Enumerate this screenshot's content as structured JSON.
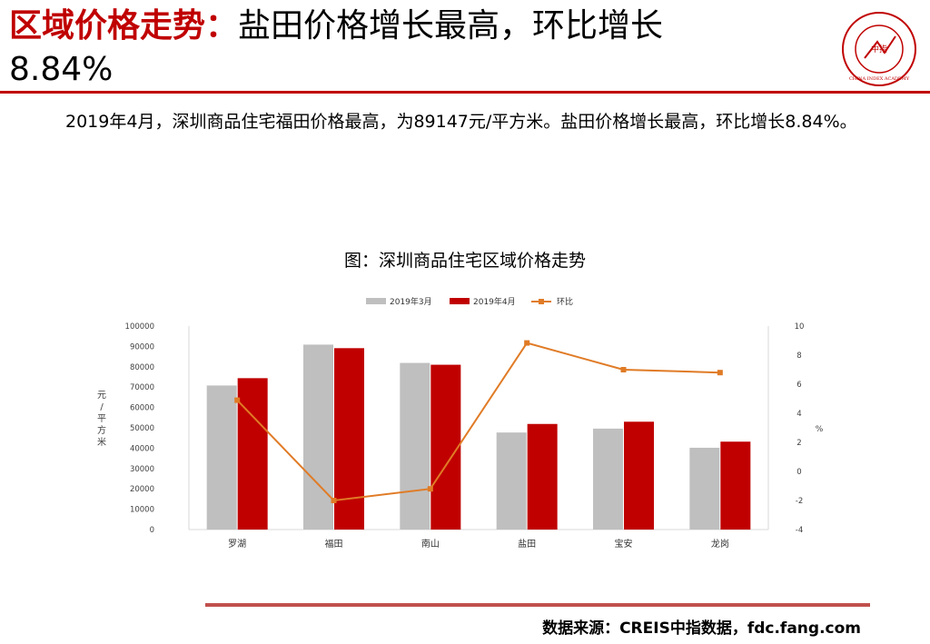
{
  "header": {
    "title_lead": "区域价格走势：",
    "title_rest": "盐田价格增长最高，环比增长",
    "title_line2": "8.84%",
    "logo_text": "CHINA INDEX ACADEMY",
    "logo_center": "中指"
  },
  "paragraph": "2019年4月，深圳商品住宅福田价格最高，为89147元/平方米。盐田价格增长最高，环比增长8.84%。",
  "chart_title": "图：深圳商品住宅区域价格走势",
  "source": "数据来源：CREIS中指数据，fdc.fang.com",
  "colors": {
    "accent": "#c00000",
    "bar_march": "#bfbfbf",
    "bar_april": "#c00000",
    "line": "#e07b26",
    "rule_bottom": "#c0504d"
  },
  "chart_data": {
    "type": "bar",
    "title": "图：深圳商品住宅区域价格走势",
    "categories": [
      "罗湖",
      "福田",
      "南山",
      "盐田",
      "宝安",
      "龙岗"
    ],
    "series": [
      {
        "name": "2019年3月",
        "type": "bar",
        "axis": "left",
        "values": [
          70800,
          90900,
          81900,
          47700,
          49600,
          40200
        ]
      },
      {
        "name": "2019年4月",
        "type": "bar",
        "axis": "left",
        "values": [
          74400,
          89147,
          81000,
          51900,
          53000,
          43200
        ]
      },
      {
        "name": "环比",
        "type": "line",
        "axis": "right",
        "values": [
          4.9,
          -2.0,
          -1.2,
          8.84,
          7.0,
          6.8
        ]
      }
    ],
    "ylabel": "元/平方米",
    "y2label": "%",
    "ylim": [
      0,
      100000
    ],
    "yticks": [
      "0",
      "10000",
      "20000",
      "30000",
      "40000",
      "50000",
      "60000",
      "70000",
      "80000",
      "90000",
      "100000"
    ],
    "y2lim": [
      -4,
      10
    ],
    "y2ticks": [
      "-4",
      "-2",
      "0",
      "2",
      "4",
      "6",
      "8",
      "10"
    ],
    "legend_position": "top",
    "grid": false
  }
}
